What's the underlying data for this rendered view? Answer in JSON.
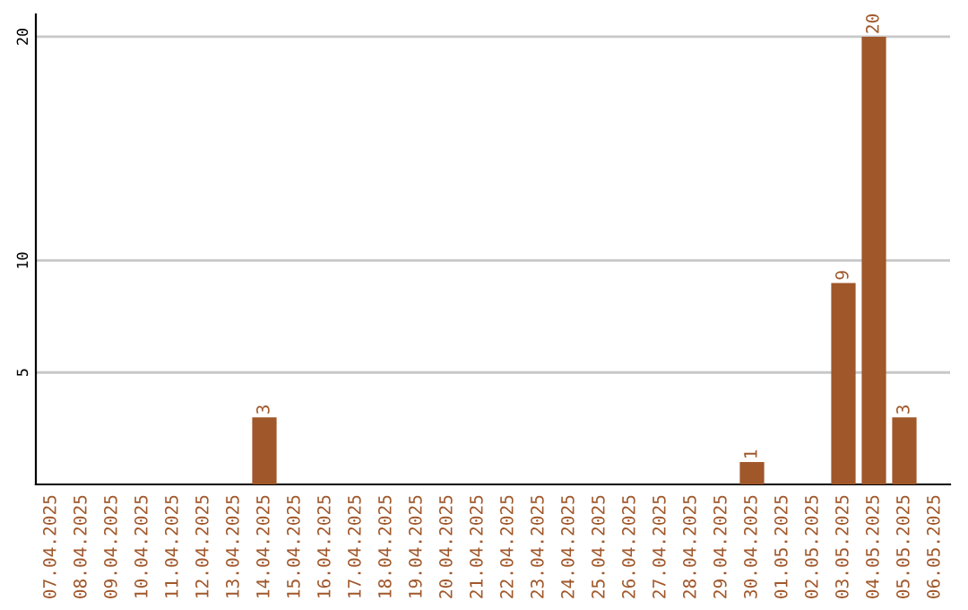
{
  "chart_data": {
    "type": "bar",
    "categories": [
      "07.04.2025",
      "08.04.2025",
      "09.04.2025",
      "10.04.2025",
      "11.04.2025",
      "12.04.2025",
      "13.04.2025",
      "14.04.2025",
      "15.04.2025",
      "16.04.2025",
      "17.04.2025",
      "18.04.2025",
      "19.04.2025",
      "20.04.2025",
      "21.04.2025",
      "22.04.2025",
      "23.04.2025",
      "24.04.2025",
      "25.04.2025",
      "26.04.2025",
      "27.04.2025",
      "28.04.2025",
      "29.04.2025",
      "30.04.2025",
      "01.05.2025",
      "02.05.2025",
      "03.05.2025",
      "04.05.2025",
      "05.05.2025",
      "06.05.2025"
    ],
    "values": [
      0,
      0,
      0,
      0,
      0,
      0,
      0,
      3,
      0,
      0,
      0,
      0,
      0,
      0,
      0,
      0,
      0,
      0,
      0,
      0,
      0,
      0,
      0,
      1,
      0,
      0,
      9,
      20,
      3,
      0
    ],
    "value_labels": [
      null,
      null,
      null,
      null,
      null,
      null,
      null,
      "3",
      null,
      null,
      null,
      null,
      null,
      null,
      null,
      null,
      null,
      null,
      null,
      null,
      null,
      null,
      null,
      "1",
      null,
      null,
      "9",
      "20",
      "3",
      null
    ],
    "color": "#a0572a",
    "ylim": [
      0,
      21
    ],
    "yticks": [
      5,
      10,
      20
    ],
    "grid": "y"
  }
}
